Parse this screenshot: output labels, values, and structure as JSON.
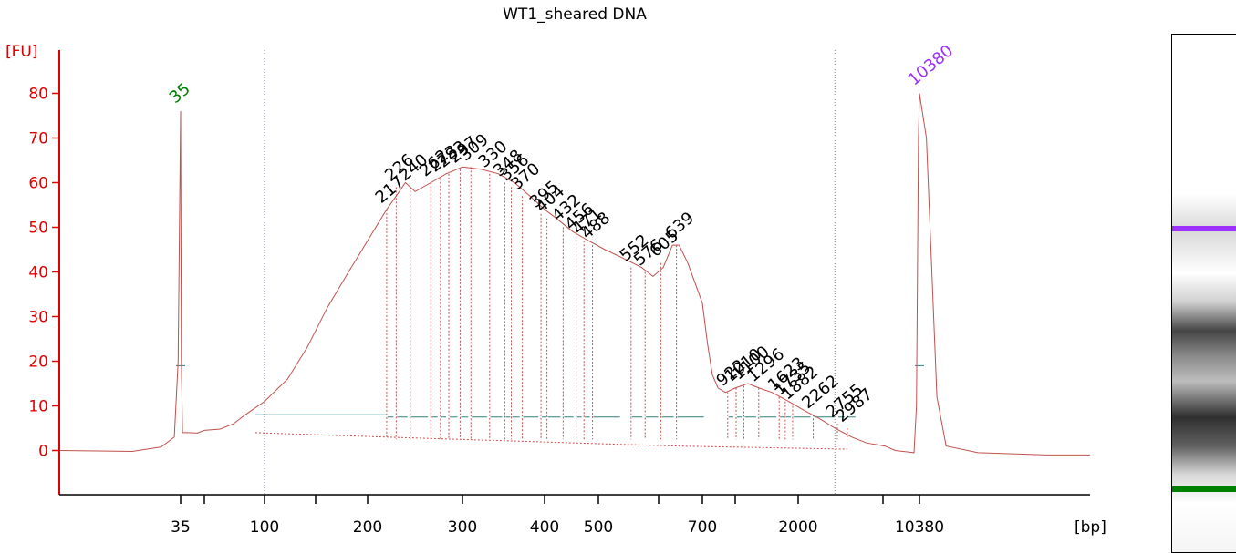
{
  "colors": {
    "axis": "#e00000",
    "trace": "#c0504d",
    "lower_marker": "#008000",
    "upper_marker": "#9b30ff",
    "baseline": "#2f7f7f",
    "guides": "#8080a0",
    "label": "#000000"
  },
  "chart_data": {
    "type": "line",
    "title": "WT1_sheared DNA",
    "ylabel": "[FU]",
    "xlabel": "[bp]",
    "ylim": [
      -11,
      87
    ],
    "yticks": [
      0,
      10,
      20,
      30,
      40,
      50,
      60,
      70,
      80
    ],
    "xticks": [
      {
        "label": "35",
        "bp": 35
      },
      {
        "label": "",
        "bp": 50
      },
      {
        "label": "100",
        "bp": 100
      },
      {
        "label": "",
        "bp": 150
      },
      {
        "label": "200",
        "bp": 200
      },
      {
        "label": "300",
        "bp": 300
      },
      {
        "label": "400",
        "bp": 400
      },
      {
        "label": "500",
        "bp": 500
      },
      {
        "label": "",
        "bp": 600
      },
      {
        "label": "700",
        "bp": 700
      },
      {
        "label": "",
        "bp": 1000
      },
      {
        "label": "2000",
        "bp": 2000
      },
      {
        "label": "",
        "bp": 4000
      },
      {
        "label": "10380",
        "bp": 10380
      }
    ],
    "region_bounds_bp": [
      100,
      2700
    ],
    "markers": [
      {
        "label": "35",
        "bp": 35,
        "fu": 76,
        "kind": "lower"
      },
      {
        "label": "10380",
        "bp": 10380,
        "fu": 80,
        "kind": "upper"
      }
    ],
    "trace": [
      [
        20,
        0
      ],
      [
        28,
        -0.2
      ],
      [
        32,
        0.8
      ],
      [
        34,
        3
      ],
      [
        34.6,
        20
      ],
      [
        35,
        76
      ],
      [
        35.4,
        20
      ],
      [
        36,
        4
      ],
      [
        40,
        4
      ],
      [
        45,
        3.9
      ],
      [
        50,
        4.5
      ],
      [
        60,
        4.8
      ],
      [
        70,
        6
      ],
      [
        80,
        8
      ],
      [
        100,
        11
      ],
      [
        120,
        16
      ],
      [
        140,
        23
      ],
      [
        160,
        32
      ],
      [
        180,
        40
      ],
      [
        200,
        47
      ],
      [
        217,
        54
      ],
      [
        226,
        57
      ],
      [
        235,
        60
      ],
      [
        245,
        58
      ],
      [
        262,
        60
      ],
      [
        280,
        62
      ],
      [
        300,
        63.5
      ],
      [
        320,
        63
      ],
      [
        340,
        62
      ],
      [
        360,
        60
      ],
      [
        380,
        57
      ],
      [
        400,
        54
      ],
      [
        420,
        52
      ],
      [
        450,
        49
      ],
      [
        480,
        47
      ],
      [
        510,
        45
      ],
      [
        540,
        43
      ],
      [
        570,
        41
      ],
      [
        590,
        39
      ],
      [
        610,
        41
      ],
      [
        630,
        46
      ],
      [
        645,
        46
      ],
      [
        665,
        42
      ],
      [
        700,
        33
      ],
      [
        740,
        24
      ],
      [
        780,
        17
      ],
      [
        830,
        14
      ],
      [
        900,
        13
      ],
      [
        1000,
        14
      ],
      [
        1150,
        15
      ],
      [
        1300,
        14
      ],
      [
        1500,
        13
      ],
      [
        1800,
        11
      ],
      [
        2100,
        9
      ],
      [
        2400,
        7
      ],
      [
        2700,
        5
      ],
      [
        3100,
        3
      ],
      [
        3500,
        1.7
      ],
      [
        4200,
        1
      ],
      [
        5500,
        0
      ],
      [
        7500,
        -0.3
      ],
      [
        9000,
        -0.5
      ],
      [
        9600,
        10
      ],
      [
        10100,
        70
      ],
      [
        10380,
        80
      ],
      [
        10660,
        70
      ],
      [
        11100,
        12
      ],
      [
        11500,
        1
      ],
      [
        13000,
        -0.5
      ],
      [
        17000,
        -1
      ],
      [
        20000,
        -1
      ]
    ],
    "peaks": [
      {
        "label": "217",
        "bp": 217,
        "fu": 54
      },
      {
        "label": "226",
        "bp": 226,
        "fu": 59
      },
      {
        "label": "240",
        "bp": 240,
        "fu": 59
      },
      {
        "label": "262",
        "bp": 262,
        "fu": 60
      },
      {
        "label": "273",
        "bp": 273,
        "fu": 61
      },
      {
        "label": "283",
        "bp": 283,
        "fu": 62
      },
      {
        "label": "297",
        "bp": 297,
        "fu": 63
      },
      {
        "label": "309",
        "bp": 309,
        "fu": 63.5
      },
      {
        "label": "330",
        "bp": 330,
        "fu": 62
      },
      {
        "label": "348",
        "bp": 348,
        "fu": 60
      },
      {
        "label": "356",
        "bp": 356,
        "fu": 59
      },
      {
        "label": "370",
        "bp": 370,
        "fu": 57
      },
      {
        "label": "395",
        "bp": 395,
        "fu": 53
      },
      {
        "label": "404",
        "bp": 404,
        "fu": 52
      },
      {
        "label": "432",
        "bp": 432,
        "fu": 50
      },
      {
        "label": "456",
        "bp": 456,
        "fu": 48
      },
      {
        "label": "471",
        "bp": 471,
        "fu": 47
      },
      {
        "label": "488",
        "bp": 488,
        "fu": 46
      },
      {
        "label": "552",
        "bp": 552,
        "fu": 41
      },
      {
        "label": "576",
        "bp": 576,
        "fu": 40
      },
      {
        "label": "605",
        "bp": 605,
        "fu": 42
      },
      {
        "label": "639",
        "bp": 639,
        "fu": 46
      },
      {
        "label": "922",
        "bp": 922,
        "fu": 13
      },
      {
        "label": "1010",
        "bp": 1010,
        "fu": 14
      },
      {
        "label": "1100",
        "bp": 1100,
        "fu": 14.5
      },
      {
        "label": "1296",
        "bp": 1296,
        "fu": 14
      },
      {
        "label": "1623",
        "bp": 1623,
        "fu": 12
      },
      {
        "label": "1735",
        "bp": 1735,
        "fu": 11
      },
      {
        "label": "1882",
        "bp": 1882,
        "fu": 10
      },
      {
        "label": "2262",
        "bp": 2262,
        "fu": 8
      },
      {
        "label": "2755",
        "bp": 2755,
        "fu": 6
      },
      {
        "label": "2987",
        "bp": 2987,
        "fu": 5
      }
    ]
  },
  "gel": {
    "lower_marker_color": "#008000",
    "upper_marker_color": "#9b30ff"
  }
}
